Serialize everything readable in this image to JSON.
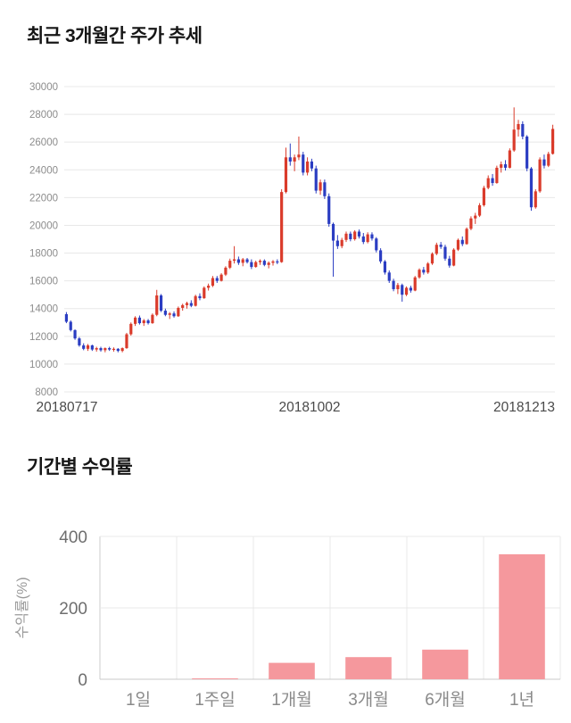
{
  "page": {
    "background": "#ffffff"
  },
  "chart_data": [
    {
      "type": "candlestick",
      "title": "최근 3개월간 주가 추세",
      "ylim": [
        8000,
        30000
      ],
      "y_tick_step": 2000,
      "x_tick_labels": [
        "20180717",
        "20181002",
        "20181213"
      ],
      "grid": true,
      "legend": false,
      "up_color": "#da3b2b",
      "down_color": "#2b3dc2",
      "grid_color": "#e8e8e8",
      "tick_label_color": "#8c8c8c",
      "axis_label_color": "#4a4a4a",
      "candles_ohlc": [
        [
          13600,
          13750,
          12950,
          13050
        ],
        [
          13050,
          13150,
          12350,
          12450
        ],
        [
          12450,
          12500,
          11750,
          11850
        ],
        [
          11850,
          11950,
          11250,
          11350
        ],
        [
          11350,
          11500,
          11000,
          11100
        ],
        [
          11100,
          11450,
          10950,
          11350
        ],
        [
          11350,
          11400,
          10950,
          11050
        ],
        [
          11050,
          11250,
          10900,
          11150
        ],
        [
          11150,
          11250,
          10900,
          11000
        ],
        [
          11000,
          11200,
          10850,
          11150
        ],
        [
          11150,
          11250,
          10950,
          11050
        ],
        [
          11050,
          11200,
          10900,
          11100
        ],
        [
          11100,
          11150,
          10850,
          10950
        ],
        [
          10950,
          11200,
          10850,
          11150
        ],
        [
          11150,
          12250,
          11100,
          12150
        ],
        [
          12150,
          13000,
          12050,
          12900
        ],
        [
          12900,
          13450,
          12750,
          13350
        ],
        [
          13350,
          13500,
          12850,
          12950
        ],
        [
          12950,
          13250,
          12750,
          13150
        ],
        [
          13150,
          13250,
          12850,
          12950
        ],
        [
          12950,
          13650,
          12900,
          13550
        ],
        [
          13550,
          15350,
          13450,
          14950
        ],
        [
          14950,
          15050,
          13750,
          13850
        ],
        [
          13850,
          14000,
          13450,
          13550
        ],
        [
          13550,
          13750,
          13250,
          13650
        ],
        [
          13650,
          13800,
          13350,
          13450
        ],
        [
          13450,
          14150,
          13400,
          14050
        ],
        [
          14050,
          14350,
          13850,
          14250
        ],
        [
          14250,
          14500,
          14000,
          14400
        ],
        [
          14400,
          14600,
          14100,
          14200
        ],
        [
          14200,
          15000,
          14150,
          14900
        ],
        [
          14900,
          15100,
          14600,
          14750
        ],
        [
          14750,
          15600,
          14700,
          15500
        ],
        [
          15500,
          15800,
          15300,
          15650
        ],
        [
          15650,
          16350,
          15550,
          16200
        ],
        [
          16200,
          16350,
          15850,
          16000
        ],
        [
          16000,
          16550,
          15950,
          16450
        ],
        [
          16450,
          17050,
          16350,
          16950
        ],
        [
          16950,
          17600,
          16850,
          17450
        ],
        [
          17450,
          18500,
          17250,
          17550
        ],
        [
          17550,
          17750,
          17150,
          17300
        ],
        [
          17300,
          17650,
          17050,
          17550
        ],
        [
          17550,
          17650,
          17250,
          17350
        ],
        [
          17350,
          17550,
          16850,
          17000
        ],
        [
          17000,
          17450,
          16950,
          17350
        ],
        [
          17350,
          17550,
          17150,
          17450
        ],
        [
          17450,
          17550,
          17050,
          17150
        ],
        [
          17150,
          17400,
          16900,
          17300
        ],
        [
          17300,
          17500,
          17100,
          17400
        ],
        [
          17400,
          17550,
          17200,
          17350
        ],
        [
          17350,
          22600,
          17300,
          22400
        ],
        [
          22400,
          25600,
          22300,
          24900
        ],
        [
          24900,
          25900,
          24300,
          24600
        ],
        [
          24600,
          25100,
          23900,
          24900
        ],
        [
          24900,
          26400,
          24700,
          25100
        ],
        [
          25100,
          25300,
          23600,
          23800
        ],
        [
          23800,
          24900,
          23600,
          24600
        ],
        [
          24600,
          24800,
          23900,
          24100
        ],
        [
          24100,
          24300,
          22300,
          22500
        ],
        [
          22500,
          23300,
          22200,
          23100
        ],
        [
          23100,
          23300,
          21900,
          22100
        ],
        [
          22100,
          22300,
          19900,
          20100
        ],
        [
          20100,
          20200,
          16300,
          18900
        ],
        [
          18900,
          19300,
          18300,
          18500
        ],
        [
          18500,
          19100,
          18350,
          18950
        ],
        [
          18950,
          19550,
          18800,
          19400
        ],
        [
          19400,
          19550,
          18850,
          19000
        ],
        [
          19000,
          19650,
          18900,
          19550
        ],
        [
          19550,
          19700,
          19050,
          19200
        ],
        [
          19200,
          19450,
          18650,
          18800
        ],
        [
          18800,
          19500,
          18700,
          19350
        ],
        [
          19350,
          19500,
          18900,
          19050
        ],
        [
          19050,
          19150,
          18050,
          18200
        ],
        [
          18200,
          18350,
          17250,
          17400
        ],
        [
          17400,
          17500,
          16450,
          16600
        ],
        [
          16600,
          16750,
          15850,
          16000
        ],
        [
          16000,
          16150,
          15250,
          15400
        ],
        [
          15400,
          15850,
          15050,
          15700
        ],
        [
          15700,
          15800,
          14500,
          15000
        ],
        [
          15000,
          15600,
          14900,
          15500
        ],
        [
          15500,
          15650,
          15150,
          15300
        ],
        [
          15300,
          16350,
          15250,
          16250
        ],
        [
          16250,
          16900,
          16150,
          16800
        ],
        [
          16800,
          17000,
          16450,
          16600
        ],
        [
          16600,
          17350,
          16500,
          17250
        ],
        [
          17250,
          18050,
          17150,
          17950
        ],
        [
          17950,
          18750,
          17850,
          18600
        ],
        [
          18600,
          18800,
          18300,
          18450
        ],
        [
          18450,
          18600,
          17450,
          17600
        ],
        [
          17600,
          17800,
          16950,
          17100
        ],
        [
          17100,
          18350,
          17050,
          18250
        ],
        [
          18250,
          19050,
          18150,
          18950
        ],
        [
          18950,
          19200,
          18500,
          18650
        ],
        [
          18650,
          19850,
          18600,
          19750
        ],
        [
          19750,
          20650,
          19650,
          20500
        ],
        [
          20500,
          20900,
          20100,
          20700
        ],
        [
          20700,
          21600,
          20600,
          21450
        ],
        [
          21450,
          22850,
          21350,
          22700
        ],
        [
          22700,
          23600,
          22600,
          23400
        ],
        [
          23400,
          23700,
          22850,
          23050
        ],
        [
          23050,
          24300,
          23000,
          24150
        ],
        [
          24150,
          24600,
          23800,
          24400
        ],
        [
          24400,
          24700,
          23950,
          24150
        ],
        [
          24150,
          25550,
          24100,
          25400
        ],
        [
          25400,
          28500,
          25300,
          26900
        ],
        [
          26900,
          27600,
          26400,
          27300
        ],
        [
          27300,
          27500,
          26200,
          26400
        ],
        [
          26400,
          26500,
          23900,
          24100
        ],
        [
          24100,
          24200,
          21050,
          21300
        ],
        [
          21300,
          22600,
          21200,
          22450
        ],
        [
          22450,
          24900,
          22350,
          24750
        ],
        [
          24750,
          25100,
          24100,
          24300
        ],
        [
          24300,
          25300,
          24200,
          25150
        ],
        [
          25150,
          27250,
          25100,
          26950
        ]
      ]
    },
    {
      "type": "bar",
      "title": "기간별 수익률",
      "ylabel": "수익률(%)",
      "ylim": [
        0,
        400
      ],
      "y_ticks": [
        0,
        200,
        400
      ],
      "categories": [
        "1일",
        "1주일",
        "1개월",
        "3개월",
        "6개월",
        "1년"
      ],
      "values": [
        0,
        2,
        46,
        62,
        83,
        350
      ],
      "grid": true,
      "legend": false,
      "bar_color": "#f5989d",
      "grid_color": "#e9e9e9",
      "axis_line_color": "#cccccc",
      "zero_line_color": "#c9c9c9",
      "tick_label_color": "#6e6e6e",
      "category_label_color": "#8a8a8a",
      "ylabel_color": "#9a9a9a"
    }
  ]
}
